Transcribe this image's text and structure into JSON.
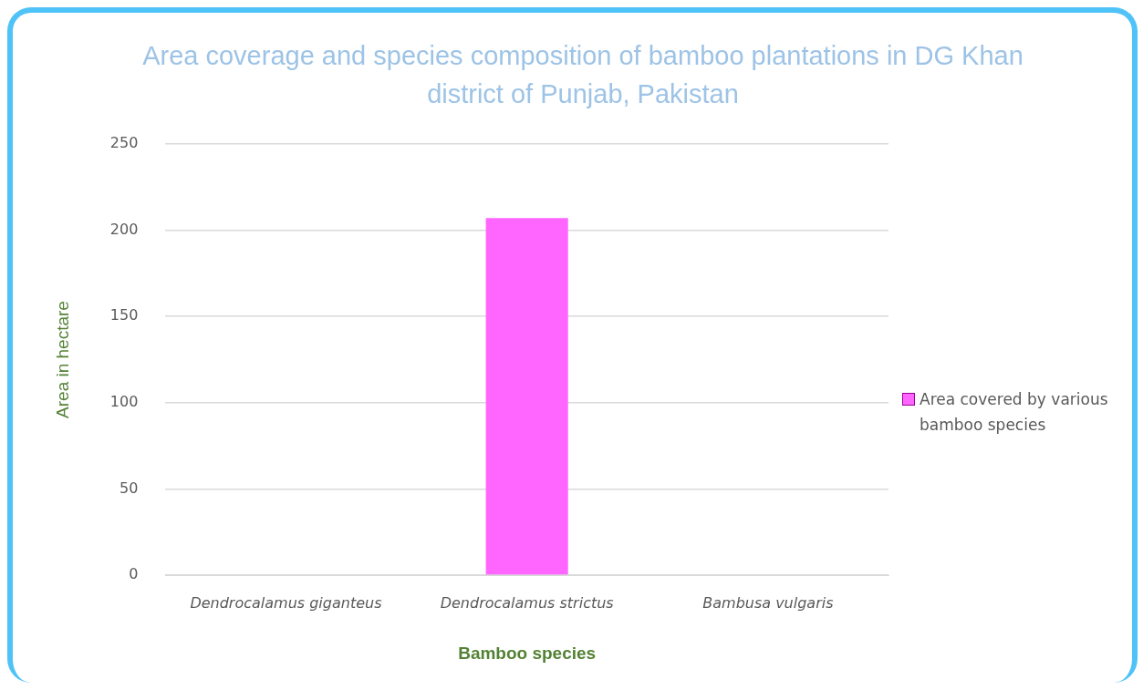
{
  "chart_data": {
    "type": "bar",
    "title": "Area coverage and species composition of bamboo plantations in DG Khan district of Punjab, Pakistan",
    "categories": [
      "Dendrocalamus giganteus",
      "Dendrocalamus strictus",
      "Bambusa vulgaris"
    ],
    "series": [
      {
        "name": "Area covered by various bamboo species",
        "color": "#ff66ff",
        "values": [
          0,
          207,
          0
        ]
      }
    ],
    "xlabel": "Bamboo species",
    "ylabel": "Area in hectare",
    "ylim": [
      0,
      250
    ],
    "yticks": [
      0,
      50,
      100,
      150,
      200,
      250
    ],
    "grid": "y",
    "legend": "right"
  }
}
